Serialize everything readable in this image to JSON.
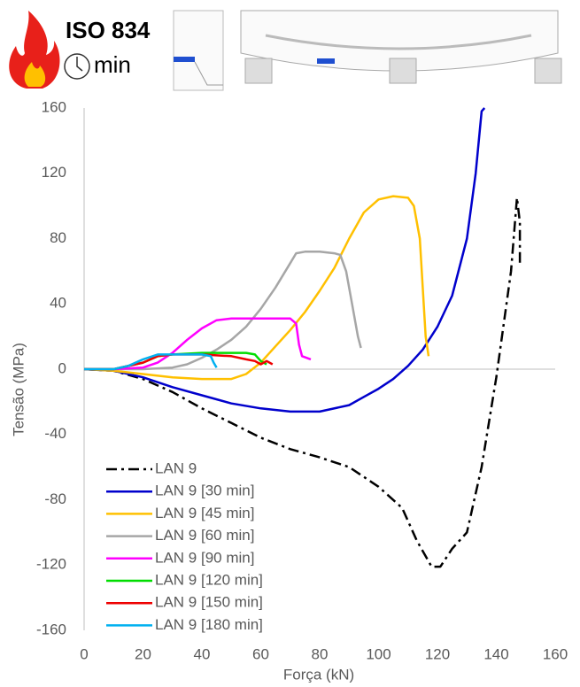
{
  "chart_data": {
    "type": "line",
    "annotations": [
      "ISO 834",
      "min"
    ],
    "xlabel": "Força (kN)",
    "ylabel": "Tensão (MPa)",
    "xlim": [
      0,
      160
    ],
    "xticks": [
      0,
      20,
      40,
      60,
      80,
      100,
      120,
      140,
      160
    ],
    "ylim": [
      -160,
      160
    ],
    "yticks": [
      -160,
      -120,
      -80,
      -40,
      0,
      40,
      80,
      120,
      160
    ],
    "legend": "lower left",
    "series": [
      {
        "name": "LAN 9",
        "color": "#000000",
        "dash": "dash-dot",
        "x": [
          0,
          10,
          20,
          30,
          40,
          50,
          60,
          70,
          80,
          90,
          100,
          108,
          113,
          118,
          121,
          125,
          130,
          135,
          140,
          145,
          147,
          148,
          148
        ],
        "values": [
          0,
          -1,
          -6,
          -14,
          -24,
          -33,
          -42,
          -49,
          -54,
          -60,
          -72,
          -85,
          -105,
          -121,
          -121,
          -110,
          -100,
          -60,
          -5,
          60,
          105,
          90,
          65
        ]
      },
      {
        "name": "LAN 9 [30 min]",
        "color": "#0000cc",
        "x": [
          0,
          10,
          20,
          30,
          40,
          50,
          60,
          70,
          80,
          90,
          95,
          100,
          105,
          110,
          115,
          120,
          125,
          130,
          133,
          135,
          136
        ],
        "values": [
          0,
          -1,
          -5,
          -11,
          -16,
          -21,
          -24,
          -26,
          -26,
          -22,
          -17,
          -12,
          -6,
          2,
          12,
          26,
          45,
          80,
          120,
          158,
          160
        ]
      },
      {
        "name": "LAN 9 [45 min]",
        "color": "#ffc000",
        "x": [
          0,
          10,
          20,
          30,
          40,
          50,
          55,
          60,
          65,
          70,
          75,
          80,
          85,
          90,
          95,
          100,
          105,
          110,
          112,
          114,
          115,
          116,
          117
        ],
        "values": [
          0,
          -1,
          -3,
          -5,
          -6,
          -6,
          -3,
          4,
          14,
          24,
          35,
          48,
          62,
          80,
          96,
          104,
          106,
          105,
          100,
          80,
          50,
          20,
          8
        ]
      },
      {
        "name": "LAN 9 [60 min]",
        "color": "#a6a6a6",
        "x": [
          0,
          10,
          20,
          30,
          35,
          40,
          45,
          50,
          55,
          60,
          65,
          70,
          72,
          75,
          80,
          85,
          87,
          89,
          91,
          93,
          94
        ],
        "values": [
          0,
          0,
          0,
          1,
          3,
          7,
          12,
          18,
          26,
          37,
          50,
          65,
          71,
          72,
          72,
          71,
          70,
          60,
          40,
          20,
          13
        ]
      },
      {
        "name": "LAN 9 [90 min]",
        "color": "#ff00ff",
        "x": [
          0,
          10,
          20,
          25,
          30,
          35,
          40,
          45,
          50,
          60,
          70,
          72,
          73,
          74,
          77
        ],
        "values": [
          0,
          0,
          1,
          4,
          10,
          18,
          25,
          30,
          31,
          31,
          31,
          28,
          15,
          8,
          6
        ]
      },
      {
        "name": "LAN 9 [120 min]",
        "color": "#00dd00",
        "x": [
          0,
          10,
          20,
          25,
          30,
          40,
          50,
          55,
          58,
          60,
          62
        ],
        "values": [
          0,
          0,
          4,
          8,
          9,
          10,
          10,
          10,
          9,
          5,
          3
        ]
      },
      {
        "name": "LAN 9 [150 min]",
        "color": "#ee0000",
        "x": [
          0,
          10,
          20,
          25,
          30,
          40,
          50,
          55,
          58,
          60,
          62,
          64
        ],
        "values": [
          0,
          0,
          4,
          8,
          9,
          9,
          8,
          6,
          5,
          3,
          5,
          3
        ]
      },
      {
        "name": "LAN 9 [180 min]",
        "color": "#00b0f0",
        "x": [
          0,
          10,
          15,
          20,
          25,
          30,
          40,
          43,
          44,
          45
        ],
        "values": [
          0,
          0,
          2,
          6,
          9,
          9,
          9,
          8,
          4,
          1
        ]
      }
    ]
  }
}
